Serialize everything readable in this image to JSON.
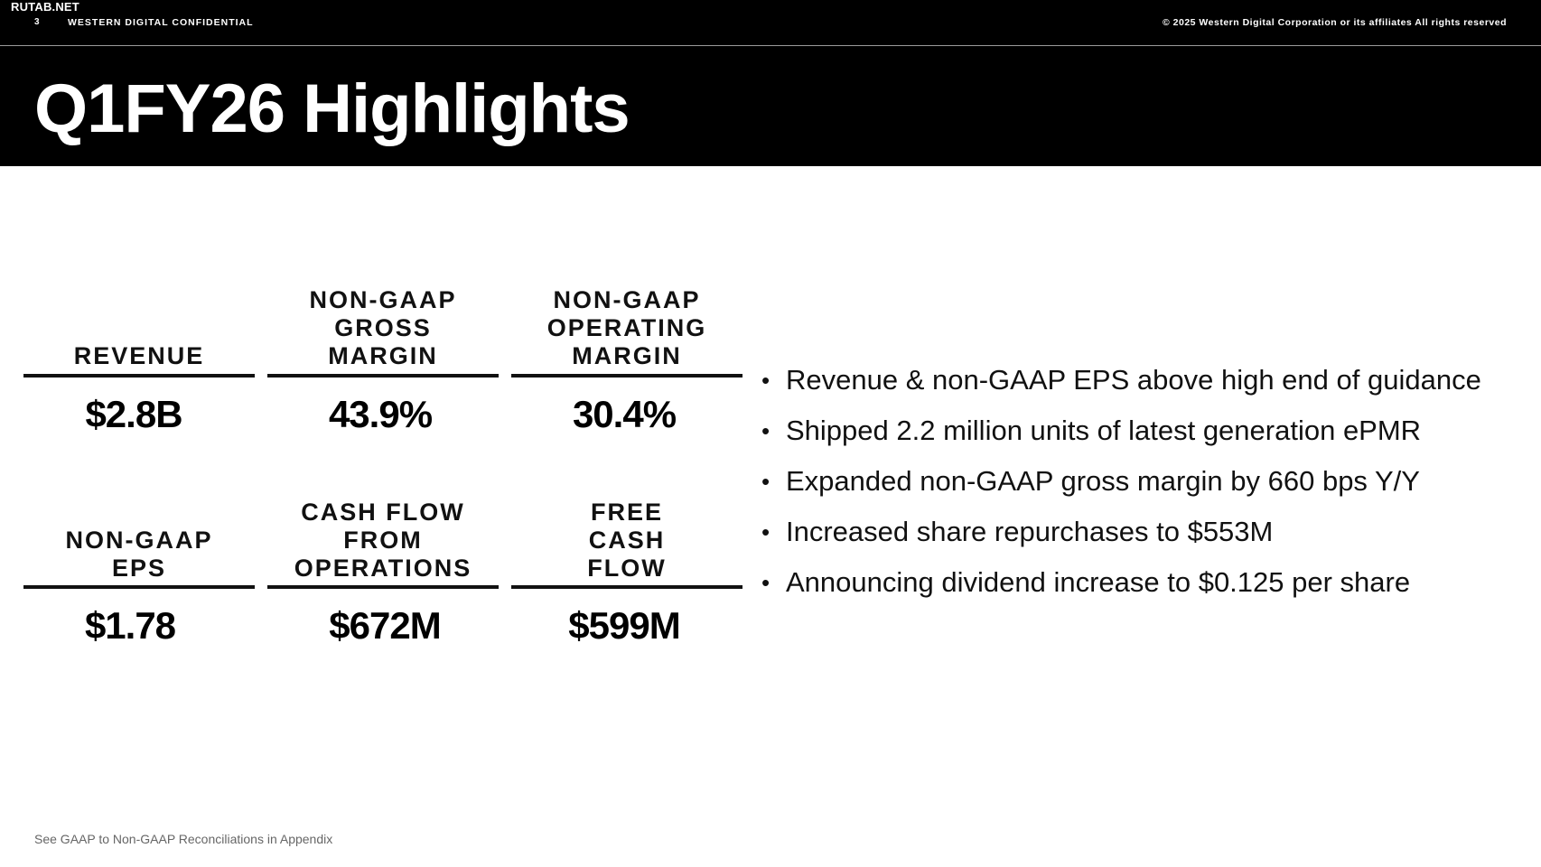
{
  "header": {
    "watermark": "RUTAB.NET",
    "page_number": "3",
    "confidential": "WESTERN DIGITAL CONFIDENTIAL",
    "copyright": "© 2025 Western Digital Corporation or its affiliates  All rights reserved"
  },
  "title": "Q1FY26 Highlights",
  "metrics": [
    {
      "label": "REVENUE",
      "value": "$2.8B"
    },
    {
      "label": "NON-GAAP\nGROSS\nMARGIN",
      "value": "43.9%"
    },
    {
      "label": "NON-GAAP\nOPERATING\nMARGIN",
      "value": "30.4%"
    },
    {
      "label": "NON-GAAP\nEPS",
      "value": "$1.78"
    },
    {
      "label": "CASH FLOW\nFROM\nOPERATIONS",
      "value": "$672M"
    },
    {
      "label": "FREE\nCASH\nFLOW",
      "value": "$599M"
    }
  ],
  "bullets": [
    "Revenue & non-GAAP EPS above high end of guidance",
    "Shipped 2.2 million units of latest generation ePMR",
    "Expanded non-GAAP gross margin by 660 bps Y/Y",
    "Increased share repurchases to $553M",
    "Announcing dividend increase to $0.125 per share"
  ],
  "footnote": "See GAAP to Non-GAAP Reconciliations in Appendix",
  "colors": {
    "header_bg": "#000000",
    "text": "#111111",
    "footnote": "#666666"
  }
}
